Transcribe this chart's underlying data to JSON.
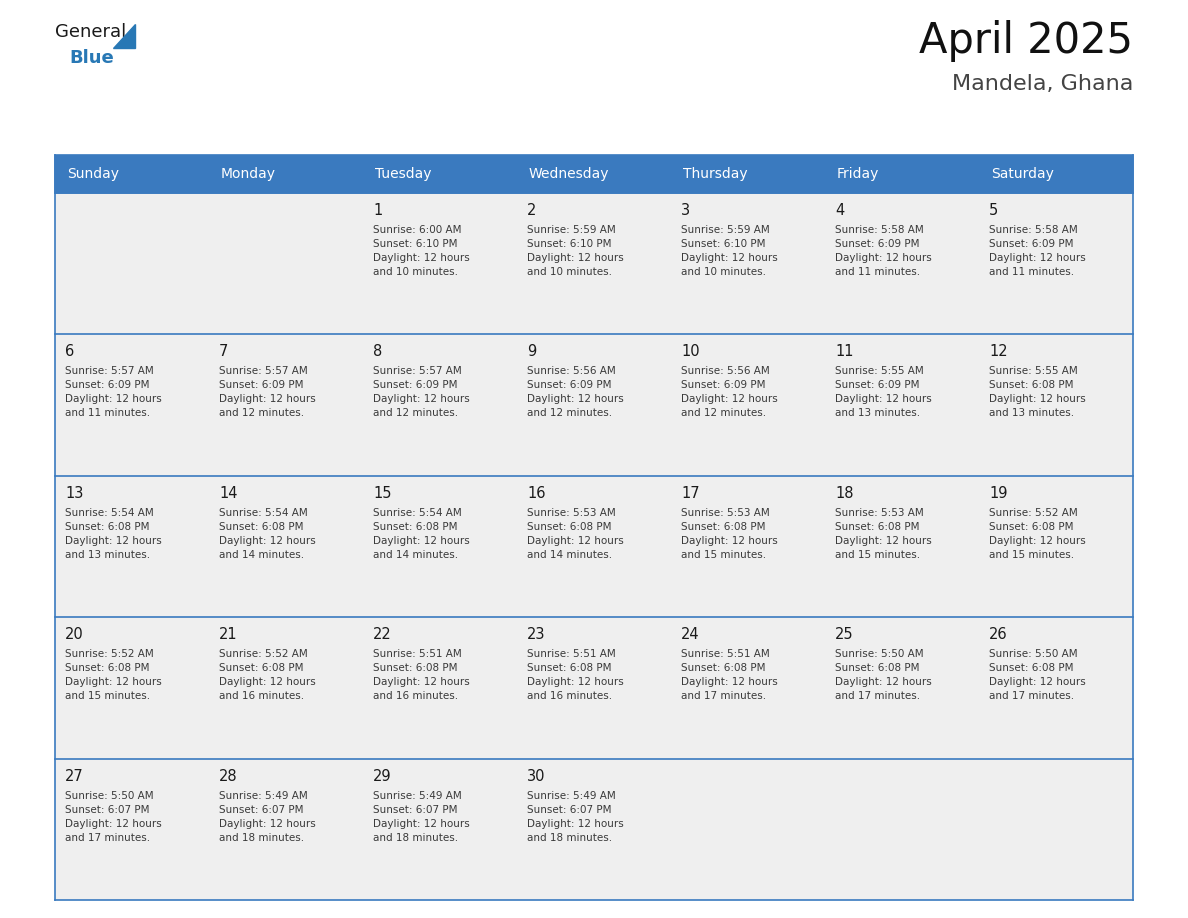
{
  "title": "April 2025",
  "subtitle": "Mandela, Ghana",
  "days_of_week": [
    "Sunday",
    "Monday",
    "Tuesday",
    "Wednesday",
    "Thursday",
    "Friday",
    "Saturday"
  ],
  "header_bg": "#3a7abf",
  "header_text": "#ffffff",
  "cell_bg_gray": "#efefef",
  "cell_bg_white": "#ffffff",
  "border_color": "#3a7abf",
  "row_line_color": "#3a7abf",
  "text_color": "#333333",
  "logo_black": "#1a1a1a",
  "logo_blue": "#2878b5",
  "weeks": [
    [
      {
        "day": null,
        "info": null
      },
      {
        "day": null,
        "info": null
      },
      {
        "day": 1,
        "info": "Sunrise: 6:00 AM\nSunset: 6:10 PM\nDaylight: 12 hours\nand 10 minutes."
      },
      {
        "day": 2,
        "info": "Sunrise: 5:59 AM\nSunset: 6:10 PM\nDaylight: 12 hours\nand 10 minutes."
      },
      {
        "day": 3,
        "info": "Sunrise: 5:59 AM\nSunset: 6:10 PM\nDaylight: 12 hours\nand 10 minutes."
      },
      {
        "day": 4,
        "info": "Sunrise: 5:58 AM\nSunset: 6:09 PM\nDaylight: 12 hours\nand 11 minutes."
      },
      {
        "day": 5,
        "info": "Sunrise: 5:58 AM\nSunset: 6:09 PM\nDaylight: 12 hours\nand 11 minutes."
      }
    ],
    [
      {
        "day": 6,
        "info": "Sunrise: 5:57 AM\nSunset: 6:09 PM\nDaylight: 12 hours\nand 11 minutes."
      },
      {
        "day": 7,
        "info": "Sunrise: 5:57 AM\nSunset: 6:09 PM\nDaylight: 12 hours\nand 12 minutes."
      },
      {
        "day": 8,
        "info": "Sunrise: 5:57 AM\nSunset: 6:09 PM\nDaylight: 12 hours\nand 12 minutes."
      },
      {
        "day": 9,
        "info": "Sunrise: 5:56 AM\nSunset: 6:09 PM\nDaylight: 12 hours\nand 12 minutes."
      },
      {
        "day": 10,
        "info": "Sunrise: 5:56 AM\nSunset: 6:09 PM\nDaylight: 12 hours\nand 12 minutes."
      },
      {
        "day": 11,
        "info": "Sunrise: 5:55 AM\nSunset: 6:09 PM\nDaylight: 12 hours\nand 13 minutes."
      },
      {
        "day": 12,
        "info": "Sunrise: 5:55 AM\nSunset: 6:08 PM\nDaylight: 12 hours\nand 13 minutes."
      }
    ],
    [
      {
        "day": 13,
        "info": "Sunrise: 5:54 AM\nSunset: 6:08 PM\nDaylight: 12 hours\nand 13 minutes."
      },
      {
        "day": 14,
        "info": "Sunrise: 5:54 AM\nSunset: 6:08 PM\nDaylight: 12 hours\nand 14 minutes."
      },
      {
        "day": 15,
        "info": "Sunrise: 5:54 AM\nSunset: 6:08 PM\nDaylight: 12 hours\nand 14 minutes."
      },
      {
        "day": 16,
        "info": "Sunrise: 5:53 AM\nSunset: 6:08 PM\nDaylight: 12 hours\nand 14 minutes."
      },
      {
        "day": 17,
        "info": "Sunrise: 5:53 AM\nSunset: 6:08 PM\nDaylight: 12 hours\nand 15 minutes."
      },
      {
        "day": 18,
        "info": "Sunrise: 5:53 AM\nSunset: 6:08 PM\nDaylight: 12 hours\nand 15 minutes."
      },
      {
        "day": 19,
        "info": "Sunrise: 5:52 AM\nSunset: 6:08 PM\nDaylight: 12 hours\nand 15 minutes."
      }
    ],
    [
      {
        "day": 20,
        "info": "Sunrise: 5:52 AM\nSunset: 6:08 PM\nDaylight: 12 hours\nand 15 minutes."
      },
      {
        "day": 21,
        "info": "Sunrise: 5:52 AM\nSunset: 6:08 PM\nDaylight: 12 hours\nand 16 minutes."
      },
      {
        "day": 22,
        "info": "Sunrise: 5:51 AM\nSunset: 6:08 PM\nDaylight: 12 hours\nand 16 minutes."
      },
      {
        "day": 23,
        "info": "Sunrise: 5:51 AM\nSunset: 6:08 PM\nDaylight: 12 hours\nand 16 minutes."
      },
      {
        "day": 24,
        "info": "Sunrise: 5:51 AM\nSunset: 6:08 PM\nDaylight: 12 hours\nand 17 minutes."
      },
      {
        "day": 25,
        "info": "Sunrise: 5:50 AM\nSunset: 6:08 PM\nDaylight: 12 hours\nand 17 minutes."
      },
      {
        "day": 26,
        "info": "Sunrise: 5:50 AM\nSunset: 6:08 PM\nDaylight: 12 hours\nand 17 minutes."
      }
    ],
    [
      {
        "day": 27,
        "info": "Sunrise: 5:50 AM\nSunset: 6:07 PM\nDaylight: 12 hours\nand 17 minutes."
      },
      {
        "day": 28,
        "info": "Sunrise: 5:49 AM\nSunset: 6:07 PM\nDaylight: 12 hours\nand 18 minutes."
      },
      {
        "day": 29,
        "info": "Sunrise: 5:49 AM\nSunset: 6:07 PM\nDaylight: 12 hours\nand 18 minutes."
      },
      {
        "day": 30,
        "info": "Sunrise: 5:49 AM\nSunset: 6:07 PM\nDaylight: 12 hours\nand 18 minutes."
      },
      {
        "day": null,
        "info": null
      },
      {
        "day": null,
        "info": null
      },
      {
        "day": null,
        "info": null
      }
    ]
  ]
}
